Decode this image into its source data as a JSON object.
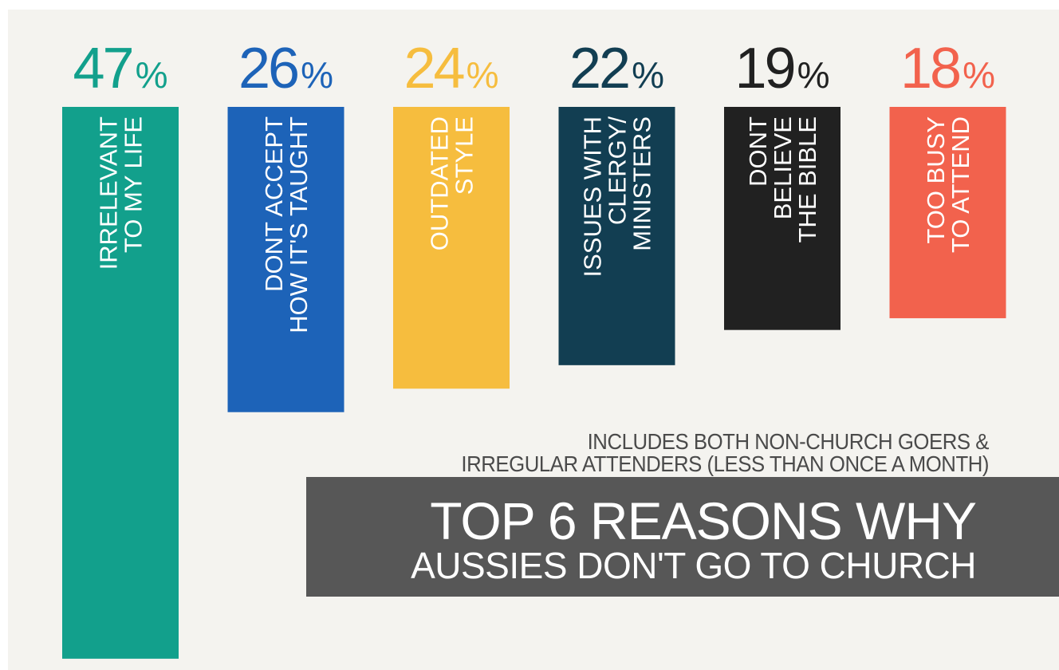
{
  "chart_data": {
    "type": "bar",
    "title": "TOP 6 REASONS WHY",
    "subtitle": "AUSSIES DON'T GO TO CHURCH",
    "note_lines": [
      "INCLUDES BOTH NON-CHURCH GOERS &",
      "IRREGULAR ATTENDERS (LESS THAN ONCE A MONTH)"
    ],
    "unit": "%",
    "categories": [
      [
        "IRRELEVANT",
        "TO MY LIFE"
      ],
      [
        "DONT ACCEPT",
        "HOW IT'S TAUGHT"
      ],
      [
        "OUTDATED",
        "STYLE"
      ],
      [
        "ISSUES WITH",
        "CLERGY/",
        "MINISTERS"
      ],
      [
        "DONT",
        "BELIEVE",
        "THE BIBLE"
      ],
      [
        "TOO BUSY",
        "TO ATTEND"
      ]
    ],
    "values": [
      47,
      26,
      24,
      22,
      19,
      18
    ],
    "colors": [
      "#12a08c",
      "#1d63b8",
      "#f6bd3e",
      "#123e52",
      "#212121",
      "#f2624d"
    ],
    "label_colors": [
      "#12a08c",
      "#1d63b8",
      "#f6bd3e",
      "#123e52",
      "#212121",
      "#f2624d"
    ]
  }
}
